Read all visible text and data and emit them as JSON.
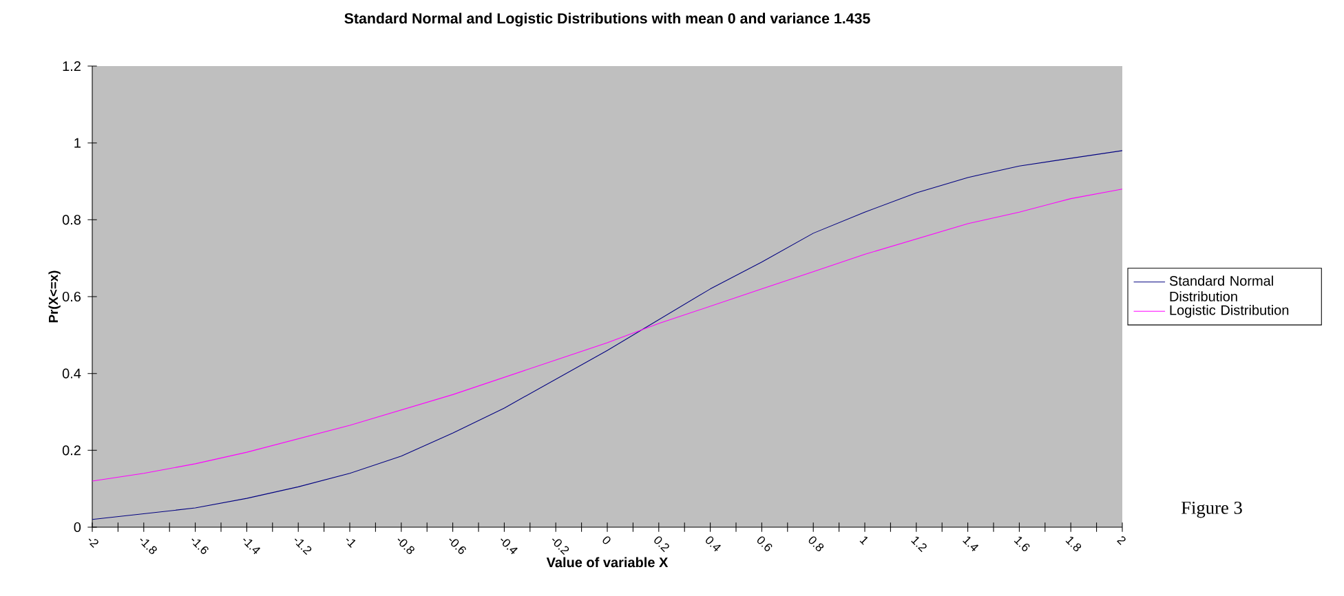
{
  "chart_data": {
    "type": "line",
    "title": "Standard Normal and Logistic Distributions with mean 0 and variance 1.435",
    "xlabel": "Value of variable X",
    "ylabel": "Pr(X<=x)",
    "x": [
      -2,
      -1.8,
      -1.6,
      -1.4,
      -1.2,
      -1,
      -0.8,
      -0.6,
      -0.4,
      -0.2,
      0,
      0.2,
      0.4,
      0.6,
      0.8,
      1,
      1.2,
      1.4,
      1.6,
      1.8,
      2
    ],
    "series": [
      {
        "name": "Standard Normal Distribution",
        "color": "#000080",
        "values": [
          0.02,
          0.035,
          0.05,
          0.075,
          0.105,
          0.14,
          0.185,
          0.245,
          0.31,
          0.385,
          0.46,
          0.54,
          0.62,
          0.69,
          0.765,
          0.82,
          0.87,
          0.91,
          0.94,
          0.96,
          0.98
        ]
      },
      {
        "name": "Logistic Distribution",
        "color": "#ff00ff",
        "values": [
          0.12,
          0.14,
          0.165,
          0.195,
          0.23,
          0.265,
          0.305,
          0.345,
          0.39,
          0.435,
          0.48,
          0.53,
          0.575,
          0.62,
          0.665,
          0.71,
          0.75,
          0.79,
          0.82,
          0.855,
          0.88
        ]
      }
    ],
    "xlim": [
      -2,
      2
    ],
    "xticks": [
      -2,
      -1.8,
      -1.6,
      -1.4,
      -1.2,
      -1,
      -0.8,
      -0.6,
      -0.4,
      -0.2,
      0,
      0.2,
      0.4,
      0.6,
      0.8,
      1,
      1.2,
      1.4,
      1.6,
      1.8,
      2
    ],
    "ylim": [
      0,
      1.2
    ],
    "yticks": [
      0,
      0.2,
      0.4,
      0.6,
      0.8,
      1,
      1.2
    ],
    "grid": false,
    "legend": "right",
    "marker": "none",
    "line_style": "solid",
    "annotations": [
      "Figure 3"
    ]
  }
}
